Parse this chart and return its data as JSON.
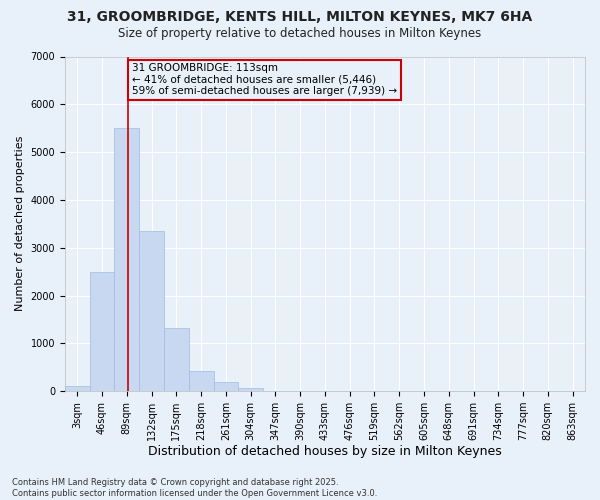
{
  "title_line1": "31, GROOMBRIDGE, KENTS HILL, MILTON KEYNES, MK7 6HA",
  "title_line2": "Size of property relative to detached houses in Milton Keynes",
  "xlabel": "Distribution of detached houses by size in Milton Keynes",
  "ylabel": "Number of detached properties",
  "bar_color": "#c8d8f0",
  "bar_edge_color": "#a0bce0",
  "background_color": "#e8f0fa",
  "grid_color": "#ffffff",
  "categories": [
    "3sqm",
    "46sqm",
    "89sqm",
    "132sqm",
    "175sqm",
    "218sqm",
    "261sqm",
    "304sqm",
    "347sqm",
    "390sqm",
    "433sqm",
    "476sqm",
    "519sqm",
    "562sqm",
    "605sqm",
    "648sqm",
    "691sqm",
    "734sqm",
    "777sqm",
    "820sqm",
    "863sqm"
  ],
  "values": [
    100,
    2500,
    5500,
    3350,
    1320,
    420,
    200,
    75,
    10,
    2,
    0,
    0,
    0,
    0,
    0,
    0,
    0,
    0,
    0,
    0,
    0
  ],
  "ylim": [
    0,
    7000
  ],
  "yticks": [
    0,
    1000,
    2000,
    3000,
    4000,
    5000,
    6000,
    7000
  ],
  "annotation_line1": "31 GROOMBRIDGE: 113sqm",
  "annotation_line2": "← 41% of detached houses are smaller (5,446)",
  "annotation_line3": "59% of semi-detached houses are larger (7,939) →",
  "vline_color": "#cc0000",
  "footer_line1": "Contains HM Land Registry data © Crown copyright and database right 2025.",
  "footer_line2": "Contains public sector information licensed under the Open Government Licence v3.0.",
  "title_fontsize": 10,
  "subtitle_fontsize": 8.5,
  "ylabel_fontsize": 8,
  "xlabel_fontsize": 9,
  "tick_fontsize": 7,
  "footer_fontsize": 6,
  "annot_fontsize": 7.5
}
